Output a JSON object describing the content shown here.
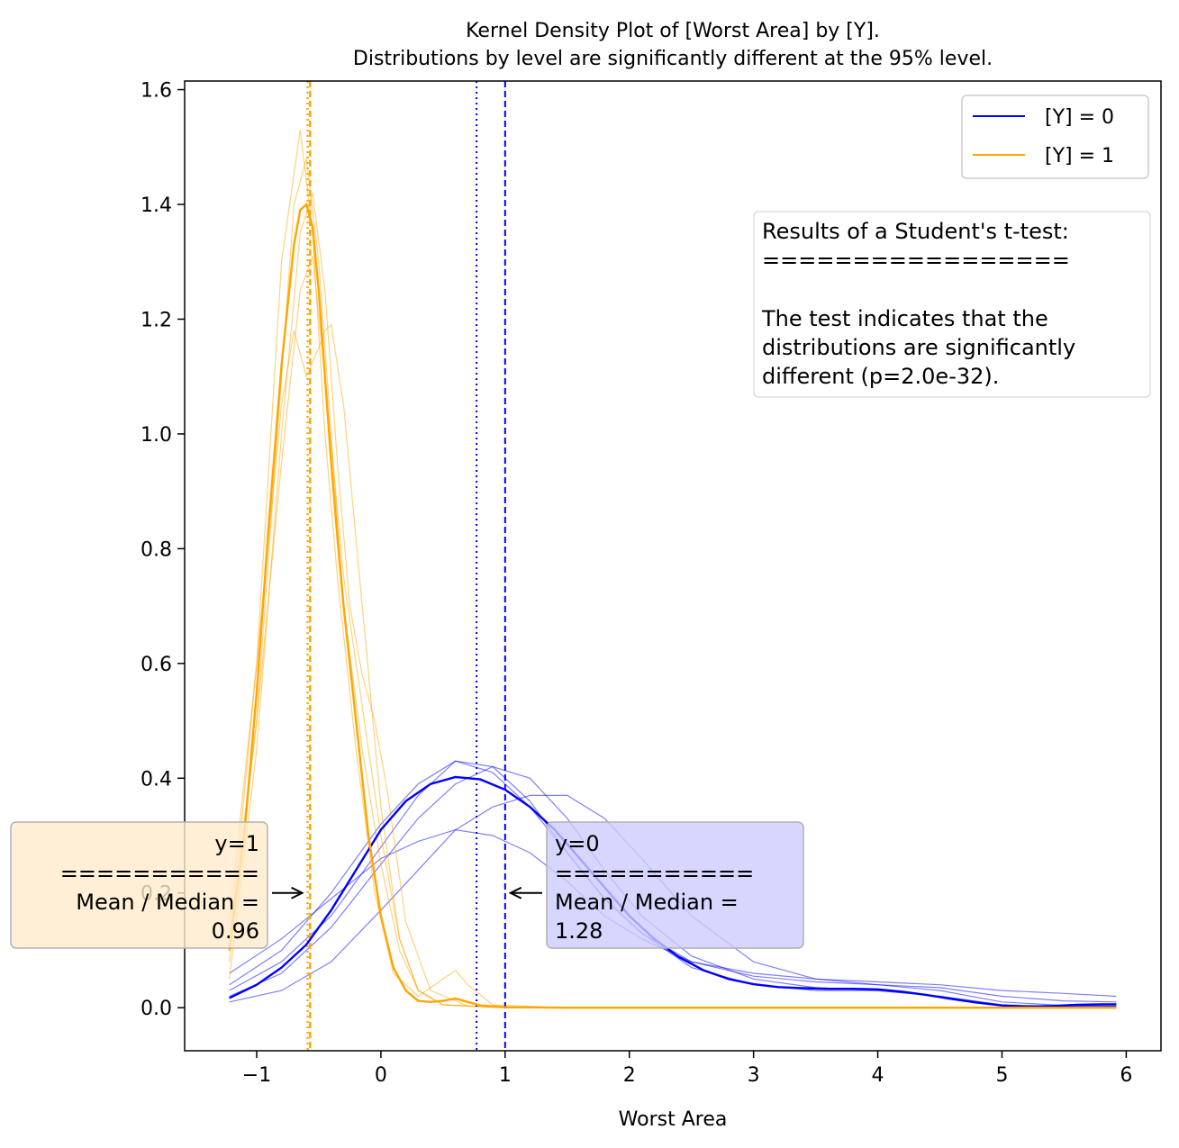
{
  "chart_data": {
    "type": "line",
    "title": "Kernel Density Plot of [Worst Area] by [Y].",
    "subtitle": "Distributions by level are significantly different at the 95% level.",
    "xlabel": "Worst Area",
    "ylabel": "",
    "xlim": [
      -1.58,
      6.28
    ],
    "ylim": [
      -0.075,
      1.615
    ],
    "xticks": [
      -1,
      0,
      1,
      2,
      3,
      4,
      5,
      6
    ],
    "xtick_labels": [
      "−1",
      "0",
      "1",
      "2",
      "3",
      "4",
      "5",
      "6"
    ],
    "yticks": [
      0.0,
      0.2,
      0.4,
      0.6,
      0.8,
      1.0,
      1.2,
      1.4,
      1.6
    ],
    "ytick_labels": [
      "0.0",
      "0.2",
      "0.4",
      "0.6",
      "0.8",
      "1.0",
      "1.2",
      "1.4",
      "1.6"
    ],
    "grid": false,
    "legend_position": "top-right",
    "series": [
      {
        "name": "[Y] = 0",
        "color": "#0000ff",
        "x": [
          -1.22,
          -1.0,
          -0.8,
          -0.6,
          -0.4,
          -0.2,
          0.0,
          0.2,
          0.4,
          0.6,
          0.8,
          1.0,
          1.2,
          1.4,
          1.6,
          1.8,
          2.0,
          2.2,
          2.4,
          2.6,
          2.8,
          3.0,
          3.2,
          3.4,
          3.6,
          3.8,
          4.0,
          4.2,
          4.4,
          4.6,
          4.8,
          5.0,
          5.2,
          5.4,
          5.6,
          5.8,
          5.92
        ],
        "y": [
          0.017,
          0.04,
          0.07,
          0.11,
          0.17,
          0.24,
          0.31,
          0.36,
          0.39,
          0.402,
          0.398,
          0.38,
          0.35,
          0.31,
          0.26,
          0.21,
          0.16,
          0.12,
          0.088,
          0.065,
          0.05,
          0.041,
          0.036,
          0.034,
          0.033,
          0.033,
          0.032,
          0.028,
          0.022,
          0.015,
          0.009,
          0.004,
          0.002,
          0.003,
          0.005,
          0.006,
          0.006
        ]
      },
      {
        "name": "[Y] = 1",
        "color": "#ffa500",
        "x": [
          -1.22,
          -1.1,
          -1.0,
          -0.9,
          -0.8,
          -0.7,
          -0.65,
          -0.6,
          -0.55,
          -0.5,
          -0.45,
          -0.4,
          -0.35,
          -0.3,
          -0.2,
          -0.1,
          0.0,
          0.1,
          0.2,
          0.3,
          0.4,
          0.5,
          0.6,
          0.7,
          0.8,
          1.0,
          1.5,
          2.0,
          3.0,
          4.0,
          5.0,
          5.92
        ],
        "y": [
          0.1,
          0.3,
          0.55,
          0.85,
          1.12,
          1.33,
          1.39,
          1.4,
          1.36,
          1.25,
          1.1,
          0.95,
          0.82,
          0.7,
          0.5,
          0.3,
          0.16,
          0.07,
          0.03,
          0.012,
          0.01,
          0.012,
          0.016,
          0.01,
          0.004,
          0.001,
          0.0,
          0.0,
          0.0,
          0.0,
          0.0,
          0.0
        ]
      }
    ],
    "bootstrap_series": [
      {
        "series": "[Y] = 0",
        "x": [
          -1.22,
          -0.8,
          -0.4,
          0.0,
          0.3,
          0.6,
          0.9,
          1.2,
          1.5,
          1.8,
          2.1,
          2.5,
          3.0,
          3.5,
          4.0,
          4.5,
          5.0,
          5.5,
          5.92
        ],
        "y": [
          0.06,
          0.12,
          0.19,
          0.26,
          0.29,
          0.31,
          0.3,
          0.27,
          0.22,
          0.16,
          0.12,
          0.08,
          0.06,
          0.05,
          0.045,
          0.04,
          0.03,
          0.025,
          0.02
        ]
      },
      {
        "series": "[Y] = 0",
        "x": [
          -1.22,
          -0.8,
          -0.4,
          0.0,
          0.3,
          0.6,
          0.9,
          1.2,
          1.5,
          1.8,
          2.1,
          2.5,
          3.0,
          3.5,
          4.0,
          4.5,
          5.0,
          5.5,
          5.92
        ],
        "y": [
          0.03,
          0.08,
          0.16,
          0.28,
          0.37,
          0.43,
          0.42,
          0.36,
          0.27,
          0.19,
          0.13,
          0.07,
          0.04,
          0.03,
          0.03,
          0.02,
          0.005,
          0.002,
          0.002
        ]
      },
      {
        "series": "[Y] = 0",
        "x": [
          -1.22,
          -0.8,
          -0.4,
          0.0,
          0.3,
          0.6,
          0.9,
          1.2,
          1.5,
          1.8,
          2.1,
          2.5,
          3.0,
          3.5,
          4.0,
          4.5,
          5.0,
          5.5,
          5.92
        ],
        "y": [
          0.02,
          0.06,
          0.14,
          0.25,
          0.33,
          0.39,
          0.42,
          0.4,
          0.33,
          0.24,
          0.16,
          0.09,
          0.05,
          0.035,
          0.03,
          0.02,
          0.004,
          0.002,
          0.002
        ]
      },
      {
        "series": "[Y] = 0",
        "x": [
          -1.22,
          -0.8,
          -0.4,
          0.0,
          0.3,
          0.6,
          0.9,
          1.2,
          1.5,
          1.8,
          2.1,
          2.5,
          3.0,
          3.5,
          4.0,
          4.5,
          5.0,
          5.5,
          5.92
        ],
        "y": [
          0.01,
          0.03,
          0.08,
          0.17,
          0.24,
          0.31,
          0.35,
          0.37,
          0.37,
          0.33,
          0.26,
          0.16,
          0.08,
          0.05,
          0.04,
          0.03,
          0.01,
          0.004,
          0.003
        ]
      },
      {
        "series": "[Y] = 0",
        "x": [
          -1.22,
          -0.8,
          -0.4,
          0.0,
          0.3,
          0.6,
          0.9,
          1.2,
          1.5,
          1.8,
          2.1,
          2.5,
          3.0,
          3.5,
          4.0,
          4.5,
          5.0,
          5.5,
          5.92
        ],
        "y": [
          0.04,
          0.1,
          0.2,
          0.32,
          0.39,
          0.43,
          0.41,
          0.35,
          0.27,
          0.19,
          0.13,
          0.08,
          0.055,
          0.045,
          0.04,
          0.035,
          0.02,
          0.012,
          0.01
        ]
      },
      {
        "series": "[Y] = 1",
        "x": [
          -1.22,
          -1.0,
          -0.8,
          -0.65,
          -0.55,
          -0.45,
          -0.35,
          -0.2,
          -0.05,
          0.1,
          0.3,
          0.5,
          0.6,
          0.7,
          0.9,
          1.5,
          3.0,
          5.92
        ],
        "y": [
          0.1,
          0.6,
          1.3,
          1.53,
          1.35,
          1.0,
          0.75,
          0.45,
          0.2,
          0.06,
          0.02,
          0.05,
          0.065,
          0.04,
          0.005,
          0.0,
          0.0,
          0.0
        ]
      },
      {
        "series": "[Y] = 1",
        "x": [
          -1.22,
          -1.0,
          -0.8,
          -0.7,
          -0.6,
          -0.5,
          -0.45,
          -0.4,
          -0.3,
          -0.15,
          0.0,
          0.15,
          0.3,
          0.5,
          1.0,
          3.0,
          5.92
        ],
        "y": [
          0.15,
          0.6,
          1.05,
          1.18,
          1.1,
          1.15,
          1.18,
          1.19,
          1.05,
          0.7,
          0.35,
          0.12,
          0.03,
          0.005,
          0.0,
          0.0,
          0.0
        ]
      },
      {
        "series": "[Y] = 1",
        "x": [
          -1.22,
          -1.0,
          -0.8,
          -0.65,
          -0.55,
          -0.45,
          -0.3,
          -0.2,
          -0.1,
          0.0,
          0.15,
          0.3,
          0.5,
          1.0,
          3.0,
          5.92
        ],
        "y": [
          0.12,
          0.5,
          0.95,
          1.25,
          1.31,
          1.1,
          0.75,
          0.6,
          0.45,
          0.3,
          0.12,
          0.03,
          0.005,
          0.0,
          0.0,
          0.0
        ]
      },
      {
        "series": "[Y] = 1",
        "x": [
          -1.22,
          -1.0,
          -0.8,
          -0.65,
          -0.55,
          -0.45,
          -0.35,
          -0.25,
          -0.15,
          -0.05,
          0.05,
          0.2,
          0.4,
          0.7,
          1.0,
          3.0,
          5.92
        ],
        "y": [
          0.05,
          0.45,
          1.0,
          1.35,
          1.42,
          1.25,
          0.95,
          0.7,
          0.58,
          0.5,
          0.38,
          0.15,
          0.03,
          0.003,
          0.0,
          0.0,
          0.0
        ]
      },
      {
        "series": "[Y] = 1",
        "x": [
          -1.22,
          -1.0,
          -0.8,
          -0.7,
          -0.6,
          -0.5,
          -0.4,
          -0.3,
          -0.15,
          0.0,
          0.15,
          0.3,
          0.5,
          1.0,
          3.0,
          5.92
        ],
        "y": [
          0.08,
          0.5,
          1.1,
          1.4,
          1.48,
          1.3,
          1.0,
          0.7,
          0.45,
          0.25,
          0.1,
          0.03,
          0.005,
          0.0,
          0.0,
          0.0
        ]
      }
    ],
    "vertical_lines": [
      {
        "series": "[Y] = 0",
        "x": 0.77,
        "style": "dotted",
        "color": "#0000ff"
      },
      {
        "series": "[Y] = 0",
        "x": 1.0,
        "style": "dashed",
        "color": "#0000ff"
      },
      {
        "series": "[Y] = 1",
        "x": -0.59,
        "style": "dotted",
        "color": "#ffa500"
      },
      {
        "series": "[Y] = 1",
        "x": -0.57,
        "style": "dashed",
        "color": "#ffa500"
      }
    ],
    "annotations": [
      {
        "id": "y1",
        "lines": [
          "y=1",
          "===========",
          "Mean / Median =",
          "0.96"
        ],
        "align": "right",
        "box_color": "#ffebcc",
        "arrow_to": {
          "x": -0.59,
          "y": 0.2
        }
      },
      {
        "id": "y0",
        "lines": [
          "y=0",
          "===========",
          "Mean / Median =",
          "1.28"
        ],
        "align": "left",
        "box_color": "#ccccff",
        "arrow_to": {
          "x": 1.0,
          "y": 0.2
        }
      }
    ],
    "textbox": {
      "lines": [
        "Results of a Student's t-test:",
        "=================",
        "",
        "The test indicates that the",
        "distributions are significantly",
        "different (p=2.0e-32)."
      ]
    }
  }
}
